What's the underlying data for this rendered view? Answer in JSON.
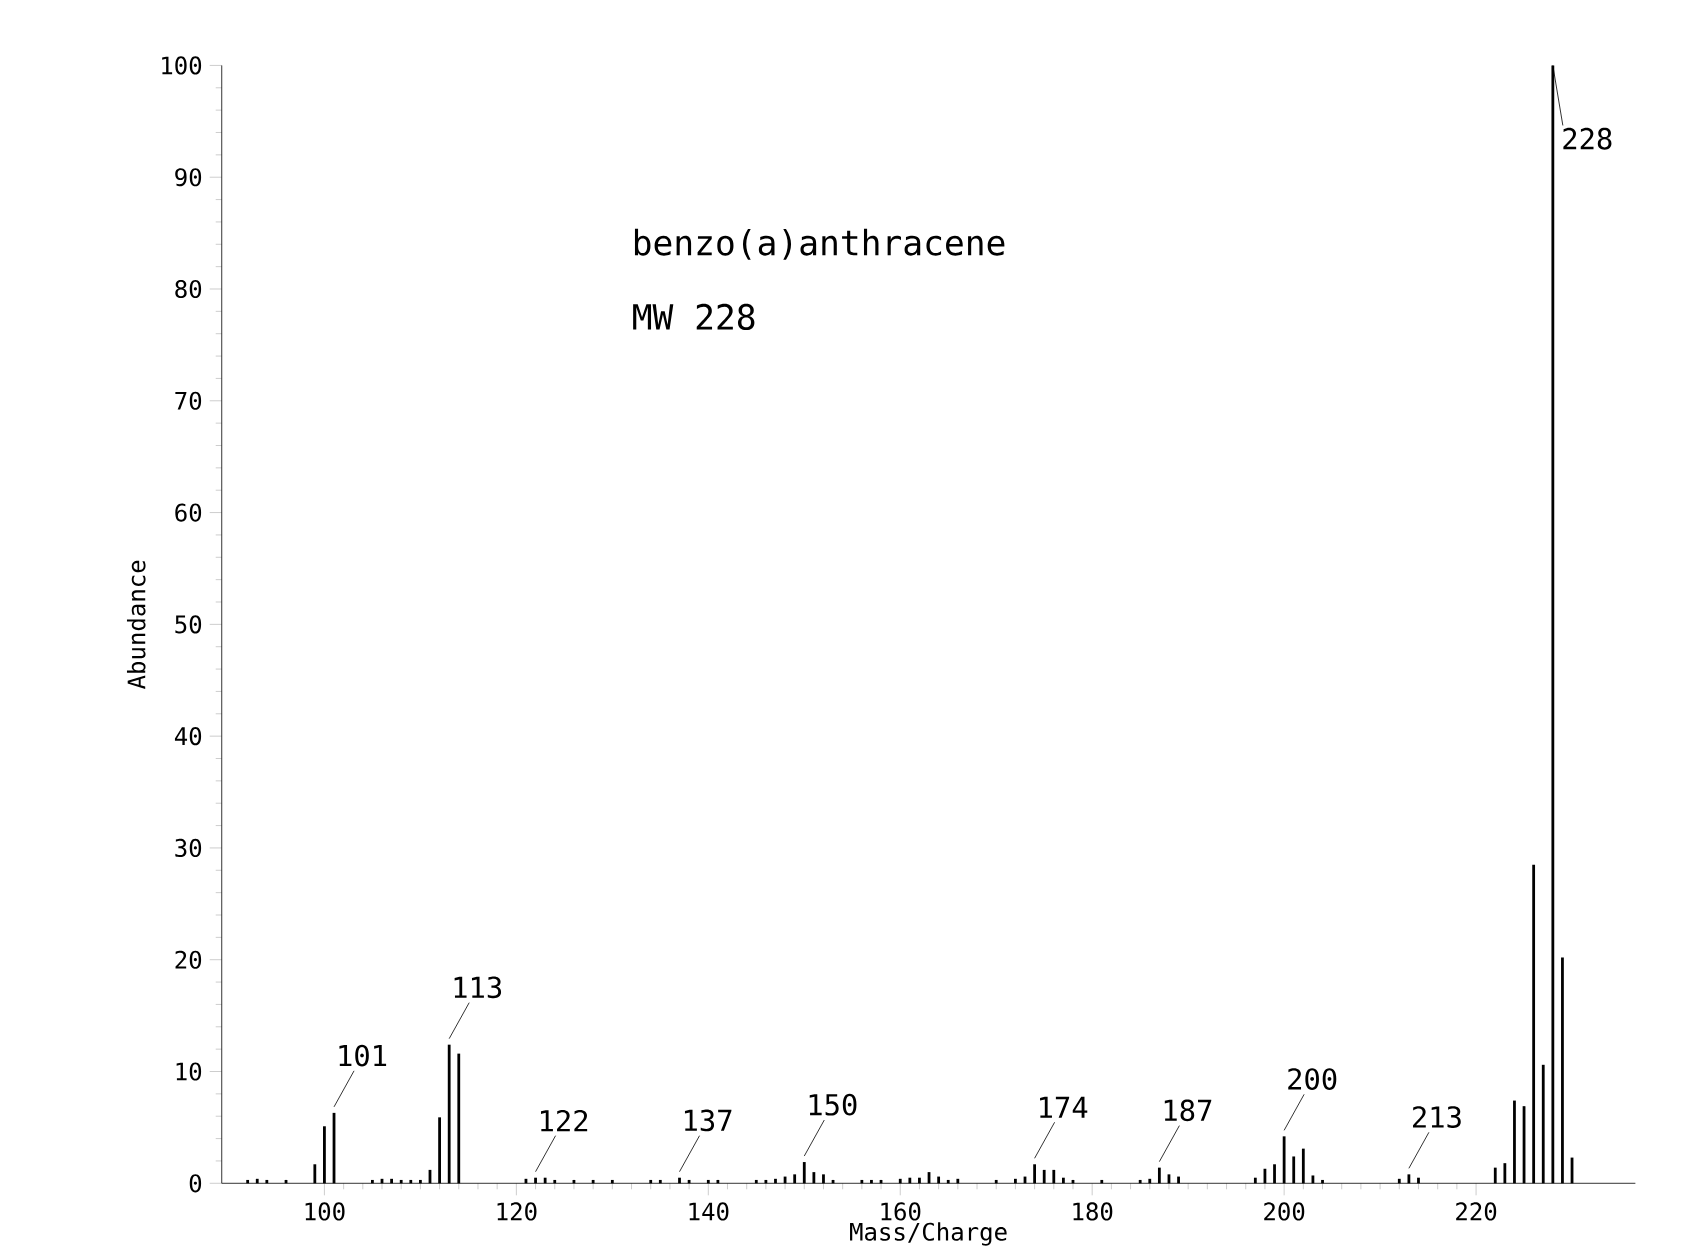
{
  "chart_data": {
    "type": "bar",
    "xlabel": "Mass/Charge",
    "ylabel": "Abundance",
    "color": "#000000",
    "x": [
      92,
      93,
      94,
      96,
      99,
      100,
      101,
      105,
      106,
      107,
      108,
      109,
      110,
      111,
      112,
      113,
      114,
      121,
      122,
      123,
      124,
      126,
      128,
      130,
      134,
      135,
      137,
      138,
      140,
      141,
      145,
      146,
      147,
      148,
      149,
      150,
      151,
      152,
      153,
      156,
      157,
      158,
      160,
      161,
      162,
      163,
      164,
      165,
      166,
      170,
      172,
      173,
      174,
      175,
      176,
      177,
      178,
      181,
      185,
      186,
      187,
      188,
      189,
      197,
      198,
      199,
      200,
      201,
      202,
      203,
      204,
      212,
      213,
      214,
      222,
      223,
      224,
      225,
      226,
      227,
      228,
      229,
      230
    ],
    "values": [
      0.3,
      0.4,
      0.3,
      0.3,
      1.7,
      5.1,
      6.3,
      0.3,
      0.4,
      0.4,
      0.3,
      0.3,
      0.3,
      1.2,
      5.9,
      12.4,
      11.6,
      0.4,
      0.5,
      0.5,
      0.3,
      0.3,
      0.3,
      0.3,
      0.3,
      0.3,
      0.5,
      0.3,
      0.3,
      0.3,
      0.3,
      0.3,
      0.4,
      0.6,
      0.8,
      1.9,
      1.0,
      0.8,
      0.3,
      0.3,
      0.3,
      0.3,
      0.4,
      0.5,
      0.5,
      1.0,
      0.6,
      0.3,
      0.4,
      0.3,
      0.4,
      0.6,
      1.7,
      1.2,
      1.2,
      0.5,
      0.3,
      0.3,
      0.3,
      0.4,
      1.4,
      0.8,
      0.6,
      0.5,
      1.3,
      1.7,
      4.2,
      2.4,
      3.1,
      0.7,
      0.3,
      0.4,
      0.8,
      0.5,
      1.4,
      1.8,
      7.4,
      6.9,
      28.5,
      10.6,
      100,
      20.2,
      2.3
    ],
    "xlim": [
      89.3,
      236.6
    ],
    "ylim": [
      0,
      100
    ],
    "xticks": [
      100,
      120,
      140,
      160,
      180,
      200,
      220
    ],
    "yticks": [
      0,
      10,
      20,
      30,
      40,
      50,
      60,
      70,
      80,
      90,
      100
    ],
    "annotations": [
      "benzo(a)anthracene",
      "MW 228",
      {
        "text": "101",
        "x": 101,
        "y": 6.3
      },
      {
        "text": "113",
        "x": 113,
        "y": 12.4
      },
      {
        "text": "122",
        "x": 122,
        "y": 0.5
      },
      {
        "text": "137",
        "x": 137,
        "y": 0.5
      },
      {
        "text": "150",
        "x": 150,
        "y": 1.9
      },
      {
        "text": "174",
        "x": 174,
        "y": 1.7
      },
      {
        "text": "187",
        "x": 187,
        "y": 1.4
      },
      {
        "text": "200",
        "x": 200,
        "y": 4.2
      },
      {
        "text": "213",
        "x": 213,
        "y": 0.8
      },
      {
        "text": "228",
        "x": 228,
        "y": 100
      }
    ]
  }
}
